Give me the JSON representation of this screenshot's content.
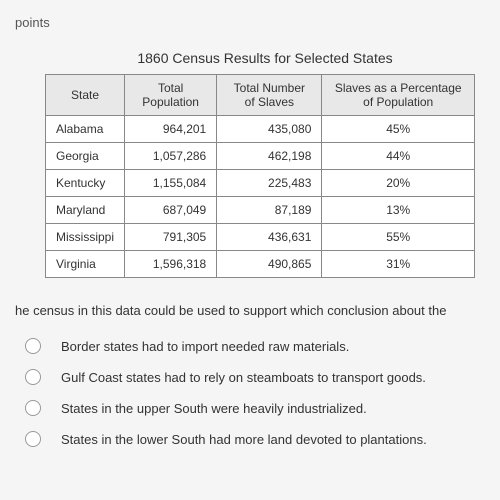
{
  "points_label": "points",
  "table": {
    "title": "1860 Census Results for Selected States",
    "columns": [
      "State",
      "Total Population",
      "Total Number of Slaves",
      "Slaves as a Percentage of Population"
    ],
    "rows": [
      {
        "state": "Alabama",
        "population": "964,201",
        "slaves": "435,080",
        "percentage": "45%"
      },
      {
        "state": "Georgia",
        "population": "1,057,286",
        "slaves": "462,198",
        "percentage": "44%"
      },
      {
        "state": "Kentucky",
        "population": "1,155,084",
        "slaves": "225,483",
        "percentage": "20%"
      },
      {
        "state": "Maryland",
        "population": "687,049",
        "slaves": "87,189",
        "percentage": "13%"
      },
      {
        "state": "Mississippi",
        "population": "791,305",
        "slaves": "436,631",
        "percentage": "55%"
      },
      {
        "state": "Virginia",
        "population": "1,596,318",
        "slaves": "490,865",
        "percentage": "31%"
      }
    ],
    "header_bg": "#e8e8e8",
    "border_color": "#888"
  },
  "question_text": "he census in this data could be used to support which conclusion about the",
  "options": [
    "Border states had to import needed raw materials.",
    "Gulf Coast states had to rely on steamboats to transport goods.",
    "States in the upper South were heavily industrialized.",
    "States in the lower South had more land devoted to plantations."
  ]
}
